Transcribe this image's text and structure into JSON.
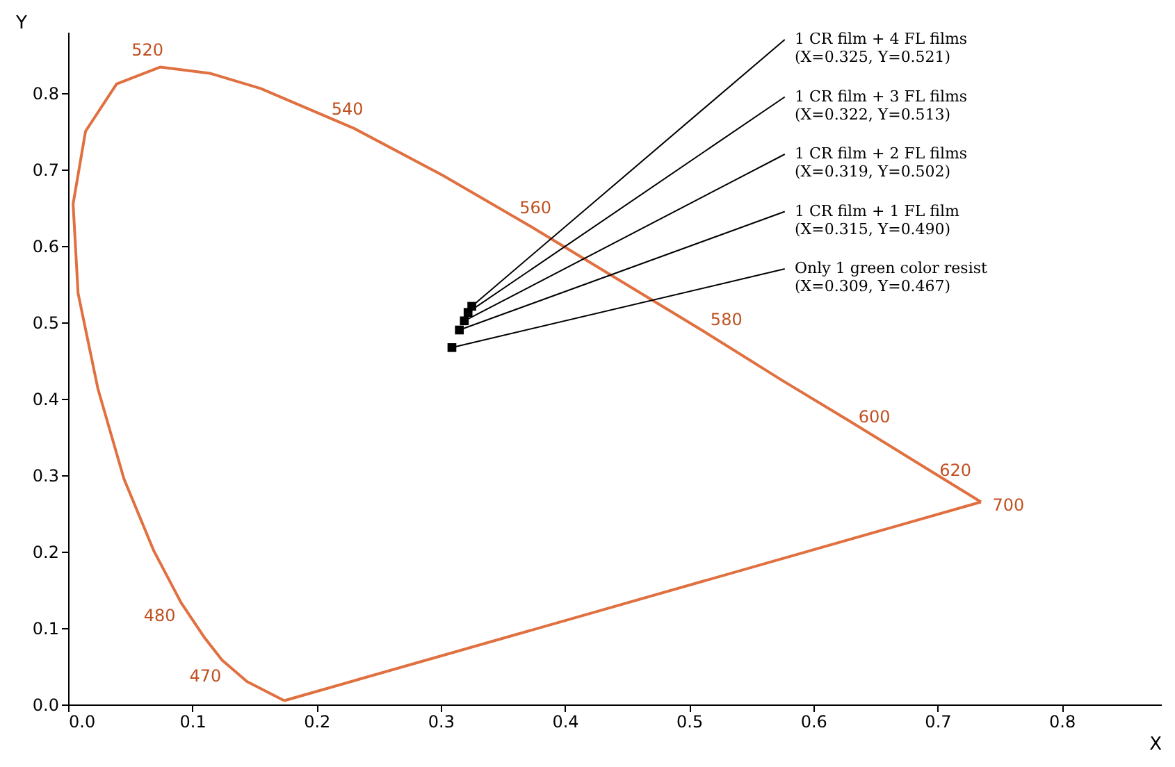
{
  "chart_data": {
    "type": "scatter",
    "xlabel": "X",
    "ylabel": "Y",
    "xlim": [
      0,
      0.88
    ],
    "ylim": [
      0,
      0.88
    ],
    "xticks": [
      {
        "value": 0,
        "label": "0.0"
      },
      0.1,
      0.2,
      0.3,
      0.4,
      0.5,
      0.6,
      0.7,
      0.8
    ],
    "yticks": [
      {
        "value": 0,
        "label": "0.0"
      },
      0.1,
      0.2,
      0.3,
      0.4,
      0.5,
      0.6,
      0.7,
      0.8
    ],
    "grid": false,
    "series": [
      {
        "type": "line",
        "color": "#e07040",
        "line_style": "solid",
        "marker": "none",
        "x": [
          0.174,
          0.144,
          0.124,
          0.11,
          0.091,
          0.069,
          0.045,
          0.024,
          0.008,
          0.004,
          0.014,
          0.039,
          0.074,
          0.114,
          0.155,
          0.23,
          0.302,
          0.373,
          0.444,
          0.513,
          0.575,
          0.627,
          0.692,
          0.735
        ],
        "values": [
          0.005,
          0.03,
          0.058,
          0.087,
          0.133,
          0.201,
          0.295,
          0.413,
          0.538,
          0.655,
          0.75,
          0.812,
          0.834,
          0.826,
          0.806,
          0.754,
          0.692,
          0.625,
          0.555,
          0.487,
          0.424,
          0.373,
          0.308,
          0.265
        ]
      },
      {
        "type": "line",
        "color": "#e07040",
        "line_style": "solid",
        "marker": "none",
        "x": [
          0.174,
          0.735
        ],
        "values": [
          0.005,
          0.265
        ]
      },
      {
        "color": "#000000",
        "marker": "square",
        "x": [
          0.325,
          0.322,
          0.319,
          0.315,
          0.309
        ],
        "values": [
          0.521,
          0.513,
          0.502,
          0.49,
          0.467
        ]
      }
    ],
    "annotations": [
      {
        "text": "520",
        "x": 0.074,
        "y": 0.834
      },
      {
        "text": "540",
        "x": 0.23,
        "y": 0.754
      },
      {
        "text": "560",
        "x": 0.373,
        "y": 0.625
      },
      {
        "text": "580",
        "x": 0.513,
        "y": 0.487
      },
      {
        "text": "600",
        "x": 0.627,
        "y": 0.373
      },
      {
        "text": "620",
        "x": 0.692,
        "y": 0.308
      },
      {
        "text": "700",
        "x": 0.735,
        "y": 0.265
      },
      {
        "text": "480",
        "x": 0.091,
        "y": 0.133
      },
      {
        "text": "470",
        "x": 0.124,
        "y": 0.058
      },
      {
        "text": "1 CR film + 4 FL films\n(X=0.325, Y=0.521)",
        "x": 0.325,
        "y": 0.521
      },
      {
        "text": "1 CR film + 3 FL films\n(X=0.322, Y=0.513)",
        "x": 0.322,
        "y": 0.513
      },
      {
        "text": "1 CR film + 2 FL films\n(X=0.319, Y=0.502)",
        "x": 0.319,
        "y": 0.502
      },
      {
        "text": "1 CR film + 1 FL film\n(X=0.315, Y=0.490)",
        "x": 0.315,
        "y": 0.49
      },
      {
        "text": "Only 1 green color resist\n(X=0.309, Y=0.467)",
        "x": 0.309,
        "y": 0.467
      }
    ]
  }
}
